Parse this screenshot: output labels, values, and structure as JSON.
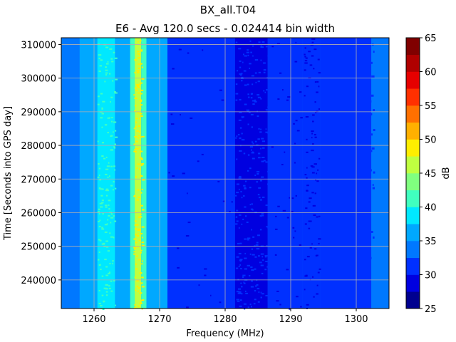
{
  "chart_data": {
    "type": "heatmap",
    "suptitle": "BX_all.T04",
    "title": "E6 - Avg 120.0 secs - 0.024414 bin width",
    "xlabel": "Frequency (MHz)",
    "ylabel": "Time [Seconds into GPS day]",
    "xlim": [
      1255,
      1305
    ],
    "ylim": [
      231500,
      312000
    ],
    "xticks": [
      1260,
      1270,
      1280,
      1290,
      1300
    ],
    "xtick_labels": [
      "1260",
      "1270",
      "1280",
      "1290",
      "1300"
    ],
    "yticks": [
      240000,
      250000,
      260000,
      270000,
      280000,
      290000,
      300000,
      310000
    ],
    "ytick_labels": [
      "240000",
      "250000",
      "260000",
      "270000",
      "280000",
      "290000",
      "300000",
      "310000"
    ],
    "grid": true,
    "colormap": "jet",
    "colorbar": {
      "label": "dB",
      "levels": [
        25,
        27.5,
        30,
        32.5,
        35,
        37.5,
        40,
        42.5,
        45,
        47.5,
        50,
        52.5,
        55,
        57.5,
        60,
        62.5,
        65
      ],
      "ticks": [
        25,
        30,
        35,
        40,
        45,
        50,
        55,
        60,
        65
      ],
      "tick_labels": [
        "25",
        "30",
        "35",
        "40",
        "45",
        "50",
        "55",
        "60",
        "65"
      ],
      "colors": [
        "#00008f",
        "#0000e0",
        "#0030ff",
        "#0078ff",
        "#00a8ff",
        "#00e8ff",
        "#40ffbf",
        "#80ff7f",
        "#bfff40",
        "#ffee00",
        "#ffb000",
        "#ff7000",
        "#ff3000",
        "#e60000",
        "#b00000",
        "#800000"
      ]
    },
    "frequency_bands_db": [
      {
        "from": 1255.0,
        "to": 1257.8,
        "db": 34.0
      },
      {
        "from": 1257.8,
        "to": 1260.5,
        "db": 35.5
      },
      {
        "from": 1260.5,
        "to": 1263.2,
        "db": 38.0
      },
      {
        "from": 1263.2,
        "to": 1265.5,
        "db": 35.5
      },
      {
        "from": 1265.5,
        "to": 1266.2,
        "db": 40.0
      },
      {
        "from": 1266.2,
        "to": 1267.2,
        "db": 46.0
      },
      {
        "from": 1267.2,
        "to": 1268.0,
        "db": 40.0
      },
      {
        "from": 1268.0,
        "to": 1270.0,
        "db": 36.0
      },
      {
        "from": 1270.0,
        "to": 1271.2,
        "db": 35.0
      },
      {
        "from": 1271.2,
        "to": 1281.5,
        "db": 31.5
      },
      {
        "from": 1281.5,
        "to": 1286.5,
        "db": 29.0
      },
      {
        "from": 1286.5,
        "to": 1291.8,
        "db": 31.0
      },
      {
        "from": 1291.8,
        "to": 1294.5,
        "db": 30.0
      },
      {
        "from": 1294.5,
        "to": 1302.3,
        "db": 31.5
      },
      {
        "from": 1302.3,
        "to": 1305.0,
        "db": 34.0
      }
    ]
  }
}
